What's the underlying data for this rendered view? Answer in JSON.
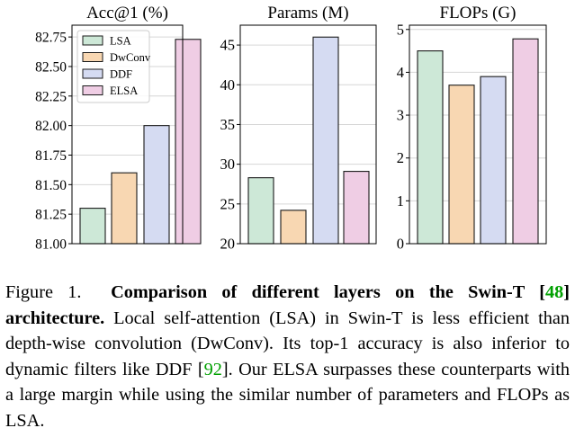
{
  "chart_data": [
    {
      "type": "bar",
      "title": "Acc@1 (%)",
      "categories": [
        "LSA",
        "DwConv",
        "DDF",
        "ELSA"
      ],
      "values": [
        81.3,
        81.6,
        82.0,
        82.73
      ],
      "ylim": [
        81.0,
        82.85
      ],
      "yticks": [
        81.0,
        81.25,
        81.5,
        81.75,
        82.0,
        82.25,
        82.5,
        82.75
      ],
      "ytick_labels": [
        "81.00",
        "81.25",
        "81.50",
        "81.75",
        "82.00",
        "82.25",
        "82.50",
        "82.75"
      ],
      "xlabel": "",
      "ylabel": "",
      "grid": true,
      "legend": "top-left"
    },
    {
      "type": "bar",
      "title": "Params (M)",
      "categories": [
        "LSA",
        "DwConv",
        "DDF",
        "ELSA"
      ],
      "values": [
        28.3,
        24.2,
        46.0,
        29.1
      ],
      "ylim": [
        20,
        47.5
      ],
      "yticks": [
        20,
        25,
        30,
        35,
        40,
        45
      ],
      "ytick_labels": [
        "20",
        "25",
        "30",
        "35",
        "40",
        "45"
      ],
      "xlabel": "",
      "ylabel": "",
      "grid": true
    },
    {
      "type": "bar",
      "title": "FLOPs (G)",
      "categories": [
        "LSA",
        "DwConv",
        "DDF",
        "ELSA"
      ],
      "values": [
        4.5,
        3.7,
        3.9,
        4.78
      ],
      "ylim": [
        0,
        5.1
      ],
      "yticks": [
        0,
        1,
        2,
        3,
        4,
        5
      ],
      "ytick_labels": [
        "0",
        "1",
        "2",
        "3",
        "4",
        "5"
      ],
      "xlabel": "",
      "ylabel": "",
      "grid": true
    }
  ],
  "legend": {
    "items": [
      {
        "label": "LSA",
        "color": "#cde8d7"
      },
      {
        "label": "DwConv",
        "color": "#f8d7b2"
      },
      {
        "label": "DDF",
        "color": "#d5dbf2"
      },
      {
        "label": "ELSA",
        "color": "#efcde4"
      }
    ]
  },
  "bar_colors": [
    "#cde8d7",
    "#f8d7b2",
    "#d5dbf2",
    "#efcde4"
  ],
  "caption": {
    "label": "Figure 1.",
    "bold": "Comparison of different layers on the Swin-T [",
    "bold_ref": "48",
    "bold_end": "] architecture.",
    "text1": " Local self-attention (LSA) in Swin-T is less efficient than depth-wise convolution (DwConv). Its top-1 accuracy is also inferior to dynamic filters like DDF [",
    "ref2": "92",
    "text2": "]. Our ELSA surpasses these counterparts with a large margin while using the similar number of parameters and FLOPs as LSA."
  }
}
